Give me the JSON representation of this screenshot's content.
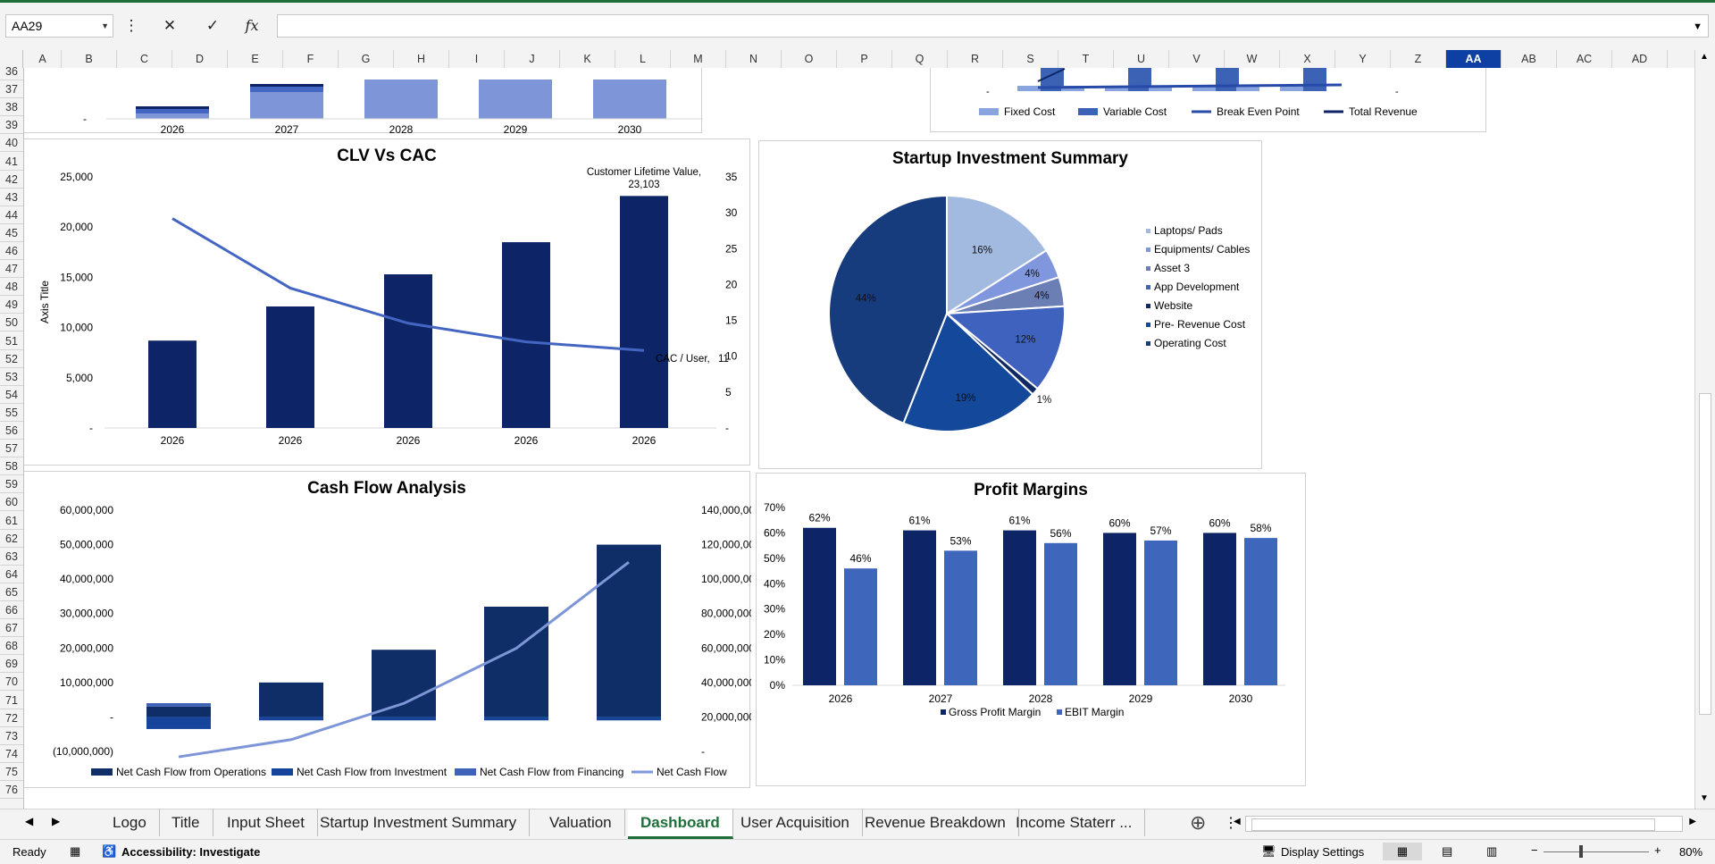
{
  "name_box": "AA29",
  "formula": "",
  "column_headers": [
    "A",
    "B",
    "C",
    "D",
    "E",
    "F",
    "G",
    "H",
    "I",
    "J",
    "K",
    "L",
    "M",
    "N",
    "O",
    "P",
    "Q",
    "R",
    "S",
    "T",
    "U",
    "V",
    "W",
    "X",
    "Y",
    "Z",
    "AA",
    "AB",
    "AC",
    "AD"
  ],
  "selected_column": "AA",
  "row_headers": [
    "36",
    "37",
    "38",
    "39",
    "40",
    "41",
    "42",
    "43",
    "44",
    "45",
    "46",
    "47",
    "48",
    "49",
    "50",
    "51",
    "52",
    "53",
    "54",
    "55",
    "56",
    "57",
    "58",
    "59",
    "60",
    "61",
    "62",
    "63",
    "64",
    "65",
    "66",
    "67",
    "68",
    "69",
    "70",
    "71",
    "72",
    "73",
    "74",
    "75",
    "76"
  ],
  "top_left_chart": {
    "categories": [
      "2026",
      "2027",
      "2028",
      "2029",
      "2030"
    ],
    "zero_label": "-",
    "colors": [
      "#7e96d8",
      "#4567c4",
      "#0d2466"
    ]
  },
  "breakeven_chart": {
    "zero_label": "-",
    "legend": [
      "Fixed Cost",
      "Variable Cost",
      "Break Even Point",
      "Total Revenue"
    ],
    "colors": [
      "#8aa4e0",
      "#3b62b5",
      "#2749a8",
      "#0d2466"
    ]
  },
  "chart_data": [
    {
      "type": "bar",
      "title": "CLV Vs CAC",
      "ylabel": "Axis Title",
      "categories": [
        "2026",
        "2026",
        "2026",
        "2026",
        "2026"
      ],
      "y_ticks": [
        "25,000",
        "20,000",
        "15,000",
        "10,000",
        "5,000",
        "-"
      ],
      "y2_ticks": [
        "35",
        "30",
        "25",
        "20",
        "15",
        "10",
        "5",
        "-"
      ],
      "series": [
        {
          "name": "Customer Lifetime Value",
          "values": [
            8700,
            12100,
            15300,
            18500,
            23103
          ],
          "color": "#0d2466",
          "axis": "primary",
          "kind": "bar"
        },
        {
          "name": "CAC / User",
          "values": [
            29.2,
            19.5,
            14.6,
            12.0,
            10.8
          ],
          "color": "#4466c2",
          "axis": "secondary",
          "kind": "line"
        }
      ],
      "data_labels": [
        {
          "series": "Customer Lifetime Value",
          "text": "Customer Lifetime Value,",
          "text2": "23,103"
        },
        {
          "series": "CAC / User",
          "text": "CAC / User,",
          "text2": "11"
        }
      ],
      "ylim": [
        0,
        25000
      ],
      "y2lim": [
        0,
        35
      ]
    },
    {
      "type": "pie",
      "title": "Startup Investment Summary",
      "labels": [
        "Laptops/ Pads",
        "Equipments/ Cables",
        "Asset 3",
        "App Development",
        "Website",
        "Pre- Revenue Cost",
        "Operating Cost"
      ],
      "values": [
        16,
        4,
        4,
        12,
        1,
        19,
        44
      ],
      "value_labels": [
        "16%",
        "4%",
        "4%",
        "12%",
        "1%",
        "19%",
        "44%"
      ],
      "colors": [
        "#a2badf",
        "#8097de",
        "#6c7fb5",
        "#3e62bd",
        "#0f2a63",
        "#13489a",
        "#173c7d"
      ],
      "legend": "right"
    },
    {
      "type": "bar",
      "title": "Cash Flow Analysis",
      "categories": [
        "2026",
        "2027",
        "2028",
        "2029",
        "2030"
      ],
      "y_ticks": [
        "60,000,000",
        "50,000,000",
        "40,000,000",
        "30,000,000",
        "20,000,000",
        "10,000,000",
        "-",
        "(10,000,000)"
      ],
      "y2_ticks": [
        "140,000,000",
        "120,000,000",
        "100,000,000",
        "80,000,000",
        "60,000,000",
        "40,000,000",
        "20,000,000",
        "-"
      ],
      "series": [
        {
          "name": "Net Cash Flow from Operations",
          "values": [
            3000000,
            10000000,
            19500000,
            32000000,
            50000000
          ],
          "color": "#0f2d66",
          "kind": "bar"
        },
        {
          "name": "Net Cash Flow from Investment",
          "values": [
            -3500000,
            -1000000,
            -1000000,
            -1000000,
            -1000000
          ],
          "color": "#15449a",
          "kind": "bar"
        },
        {
          "name": "Net Cash Flow from Financing",
          "values": [
            1000000,
            0,
            0,
            0,
            0
          ],
          "color": "#3d62b8",
          "kind": "bar"
        },
        {
          "name": "Net Cash Flow",
          "values": [
            1000000,
            11000000,
            32000000,
            64000000,
            114000000
          ],
          "color": "#7e96d8",
          "kind": "line",
          "axis": "secondary"
        }
      ],
      "ylim": [
        -10000000,
        60000000
      ],
      "y2lim": [
        0,
        140000000
      ]
    },
    {
      "type": "bar",
      "title": "Profit Margins",
      "categories": [
        "2026",
        "2027",
        "2028",
        "2029",
        "2030"
      ],
      "y_ticks": [
        "70%",
        "60%",
        "50%",
        "40%",
        "30%",
        "20%",
        "10%",
        "0%"
      ],
      "series": [
        {
          "name": "Gross Profit Margin",
          "values": [
            62,
            61,
            61,
            60,
            60
          ],
          "labels": [
            "62%",
            "61%",
            "61%",
            "60%",
            "60%"
          ],
          "color": "#0d2466"
        },
        {
          "name": "EBIT Margin",
          "values": [
            46,
            53,
            56,
            57,
            58
          ],
          "labels": [
            "46%",
            "53%",
            "56%",
            "57%",
            "58%"
          ],
          "color": "#3e66bb"
        }
      ],
      "ylim": [
        0,
        70
      ],
      "legend": "bottom"
    }
  ],
  "sheet_tabs": [
    "Logo",
    "Title",
    "Input Sheet",
    "Startup Investment Summary",
    "Valuation",
    "Dashboard",
    "User Acquisition",
    "Revenue Breakdown",
    "Income Staterr ..."
  ],
  "active_tab": "Dashboard",
  "status": {
    "ready": "Ready",
    "accessibility": "Accessibility: Investigate",
    "display_settings": "Display Settings",
    "zoom": "80%"
  }
}
